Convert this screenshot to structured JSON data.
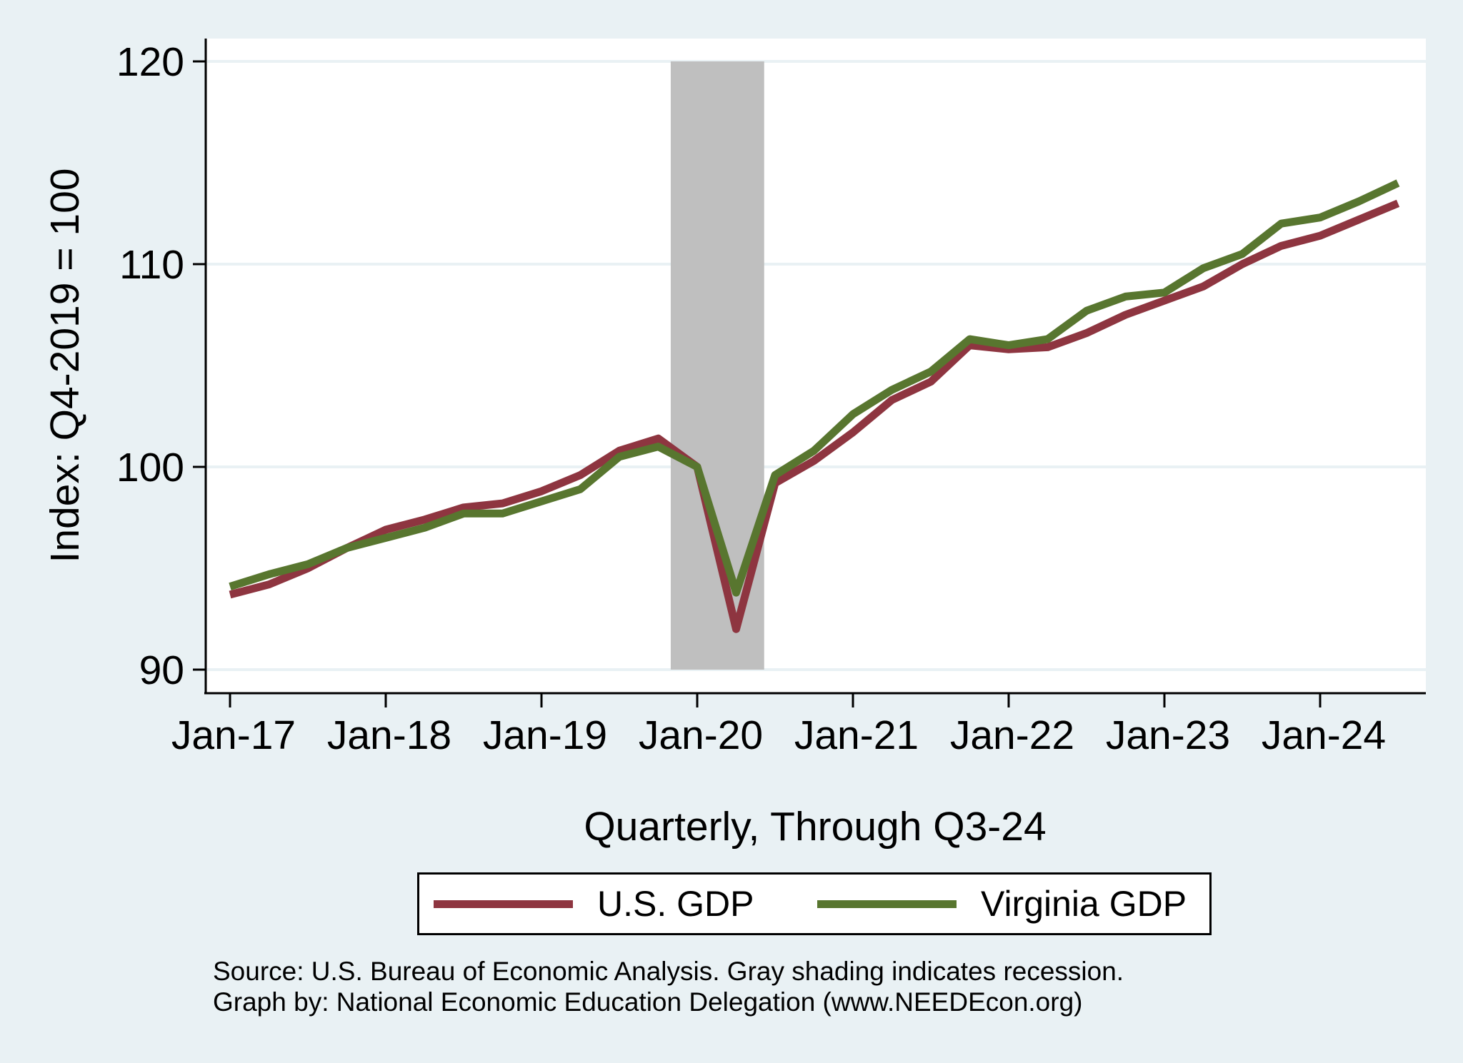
{
  "chart_data": {
    "type": "line",
    "title": "",
    "xlabel": "Quarterly, Through Q3-24",
    "ylabel": "Index: Q4-2019 = 100",
    "ylim": [
      90,
      120
    ],
    "yticks": [
      90,
      100,
      110,
      120
    ],
    "ytick_labels": [
      "90",
      "100",
      "110",
      "120"
    ],
    "xlim": [
      2016.85,
      2024.75
    ],
    "xticks": [
      2017,
      2018,
      2019,
      2020,
      2021,
      2022,
      2023,
      2024
    ],
    "xtick_labels": [
      "Jan-17",
      "Jan-18",
      "Jan-19",
      "Jan-20",
      "Jan-21",
      "Jan-22",
      "Jan-23",
      "Jan-24"
    ],
    "grid": "horizontal",
    "recession": {
      "start": 2019.83,
      "end": 2020.43,
      "color": "#bfbfbf"
    },
    "x": [
      2017.0,
      2017.25,
      2017.5,
      2017.75,
      2018.0,
      2018.25,
      2018.5,
      2018.75,
      2019.0,
      2019.25,
      2019.5,
      2019.75,
      2020.0,
      2020.25,
      2020.5,
      2020.75,
      2021.0,
      2021.25,
      2021.5,
      2021.75,
      2022.0,
      2022.25,
      2022.5,
      2022.75,
      2023.0,
      2023.25,
      2023.5,
      2023.75,
      2024.0,
      2024.25,
      2024.5
    ],
    "series": [
      {
        "name": "U.S. GDP",
        "color": "#8e3540",
        "values": [
          93.7,
          94.2,
          95.0,
          96.0,
          96.9,
          97.4,
          98.0,
          98.2,
          98.8,
          99.6,
          100.8,
          101.4,
          100.0,
          92.0,
          99.2,
          100.3,
          101.7,
          103.3,
          104.2,
          106.0,
          105.8,
          105.9,
          106.6,
          107.5,
          108.2,
          108.9,
          110.0,
          110.9,
          111.4,
          112.2,
          113.0
        ]
      },
      {
        "name": "Virginia GDP",
        "color": "#58762f",
        "values": [
          94.1,
          94.7,
          95.2,
          96.0,
          96.5,
          97.0,
          97.7,
          97.7,
          98.3,
          98.9,
          100.5,
          101.0,
          100.0,
          93.8,
          99.6,
          100.8,
          102.6,
          103.8,
          104.7,
          106.3,
          106.0,
          106.3,
          107.7,
          108.4,
          108.6,
          109.8,
          110.5,
          112.0,
          112.3,
          113.1,
          114.0
        ]
      }
    ],
    "legend": {
      "position": "bottom",
      "entries": [
        "U.S. GDP",
        "Virginia GDP"
      ]
    }
  },
  "footnotes": {
    "source": "Source: U.S. Bureau of Economic Analysis. Gray shading indicates recession.",
    "credit": "Graph by: National Economic Education Delegation (www.NEEDEcon.org)"
  },
  "colors": {
    "background": "#e9f1f4",
    "plot_background": "#ffffff",
    "gridline": "#e9f1f4"
  }
}
